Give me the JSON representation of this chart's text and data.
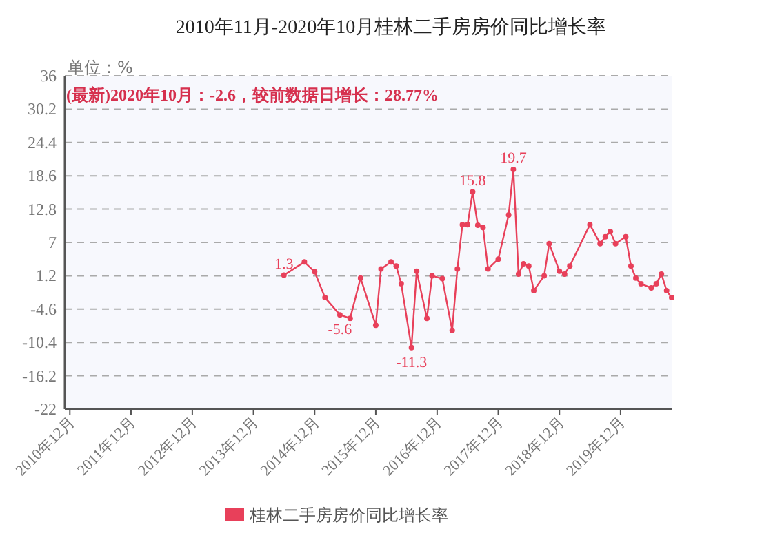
{
  "chart_data": {
    "type": "line",
    "title": "2010年11月-2020年10月桂林二手房房价同比增长率",
    "annotations": [
      "单位：%",
      "(最新)2020年10月：-2.6，较前数据日增长：28.77%"
    ],
    "x": [
      "2014-06",
      "2014-10",
      "2014-12",
      "2015-02",
      "2015-05",
      "2015-07",
      "2015-09",
      "2015-12",
      "2016-01",
      "2016-03",
      "2016-04",
      "2016-05",
      "2016-07",
      "2016-08",
      "2016-10",
      "2016-11",
      "2017-01",
      "2017-03",
      "2017-04",
      "2017-05",
      "2017-06",
      "2017-07",
      "2017-08",
      "2017-09",
      "2017-10",
      "2017-12",
      "2018-02",
      "2018-03",
      "2018-04",
      "2018-05",
      "2018-06",
      "2018-07",
      "2018-09",
      "2018-10",
      "2018-12",
      "2019-01",
      "2019-02",
      "2019-06",
      "2019-08",
      "2019-09",
      "2019-10",
      "2019-11",
      "2020-01",
      "2020-02",
      "2020-03",
      "2020-04",
      "2020-06",
      "2020-07",
      "2020-08",
      "2020-09",
      "2020-10"
    ],
    "series": [
      {
        "name": "桂林二手房房价同比增长率",
        "color": "#e8405a",
        "values": [
          1.3,
          3.6,
          1.9,
          -2.6,
          -5.6,
          -6.2,
          0.8,
          -7.4,
          2.4,
          3.6,
          2.9,
          -0.2,
          -11.3,
          2,
          -6.2,
          1.2,
          0.7,
          -8.3,
          2.4,
          10.1,
          10.1,
          15.8,
          10,
          9.6,
          2.4,
          4.1,
          11.8,
          19.7,
          1.5,
          3.3,
          2.9,
          -1.4,
          1.2,
          6.8,
          2,
          1.5,
          2.9,
          10.1,
          6.8,
          8,
          8.9,
          6.8,
          8,
          2.9,
          0.8,
          -0.2,
          -0.9,
          -0.2,
          1.5,
          -1.4,
          -2.6
        ],
        "value_labels": [
          "1.3",
          null,
          null,
          null,
          "-5.6",
          null,
          null,
          null,
          null,
          null,
          null,
          null,
          "-11.3",
          null,
          null,
          null,
          null,
          null,
          null,
          null,
          null,
          "15.8",
          null,
          null,
          null,
          null,
          null,
          "19.7",
          null,
          null,
          null,
          null,
          null,
          null,
          null,
          null,
          null,
          null,
          null,
          null,
          null,
          null,
          null,
          null,
          null,
          null,
          null,
          null,
          null,
          null,
          null
        ]
      }
    ],
    "xlim": [
      "2010-11",
      "2020-10"
    ],
    "xticks": [
      {
        "value": "2010-12",
        "label": "2010年12月"
      },
      {
        "value": "2011-12",
        "label": "2011年12月"
      },
      {
        "value": "2012-12",
        "label": "2012年12月"
      },
      {
        "value": "2013-12",
        "label": "2013年12月"
      },
      {
        "value": "2014-12",
        "label": "2014年12月"
      },
      {
        "value": "2015-12",
        "label": "2015年12月"
      },
      {
        "value": "2016-12",
        "label": "2016年12月"
      },
      {
        "value": "2017-12",
        "label": "2017年12月"
      },
      {
        "value": "2018-12",
        "label": "2018年12月"
      },
      {
        "value": "2019-12",
        "label": "2019年12月"
      }
    ],
    "ylim": [
      -22,
      36
    ],
    "yticks": [
      -22,
      -16.2,
      -10.4,
      -4.6,
      1.2,
      7,
      12.8,
      18.6,
      24.4,
      30.2,
      36
    ],
    "grid": "y",
    "legend": "bottom",
    "marker": "circle",
    "line_style": "solid"
  }
}
